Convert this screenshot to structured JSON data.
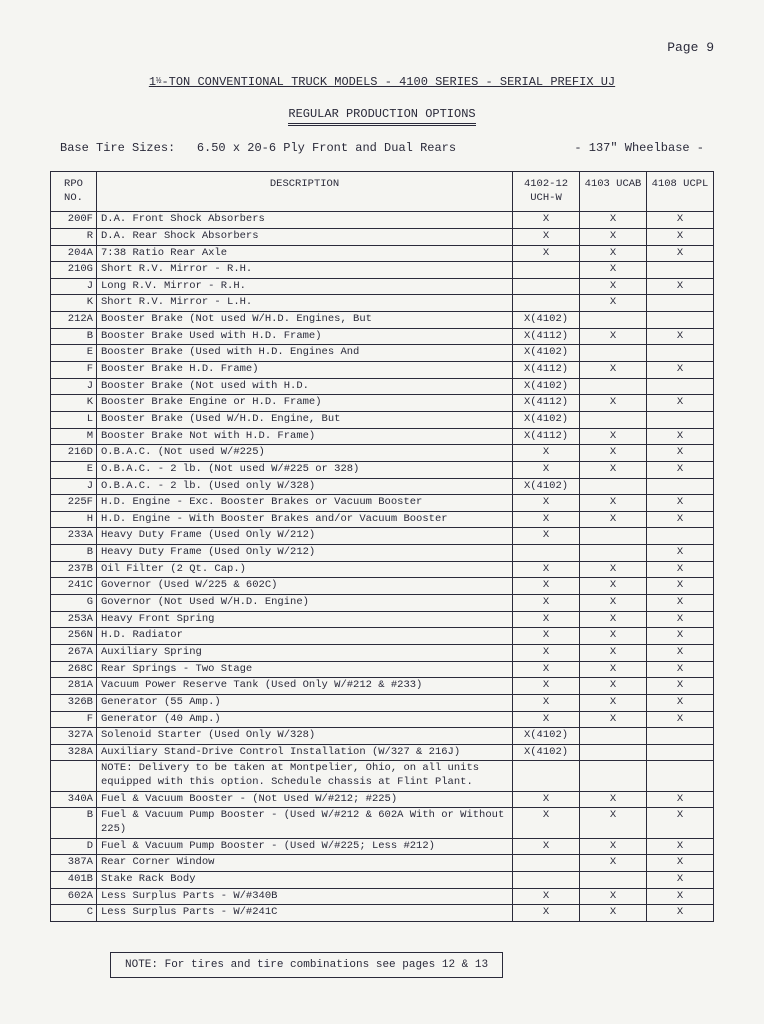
{
  "page_label": "Page 9",
  "title_prefix": "1",
  "title_frac": "½",
  "title_rest": "-TON CONVENTIONAL TRUCK MODELS - 4100 SERIES - SERIAL PREFIX UJ",
  "subtitle": "REGULAR PRODUCTION OPTIONS",
  "tire_label": "Base Tire Sizes:",
  "tire_value": "6.50 x 20-6 Ply Front and Dual Rears",
  "wheelbase": "- 137\" Wheelbase -",
  "headers": {
    "rpo": "RPO NO.",
    "desc": "DESCRIPTION",
    "c1": "4102-12 UCH-W",
    "c2": "4103 UCAB",
    "c3": "4108 UCPL"
  },
  "rows": [
    {
      "rpo": "200F",
      "desc": "D.A. Front Shock Absorbers",
      "c1": "X",
      "c2": "X",
      "c3": "X"
    },
    {
      "rpo": "R",
      "desc": "D.A. Rear Shock Absorbers",
      "c1": "X",
      "c2": "X",
      "c3": "X"
    },
    {
      "rpo": "204A",
      "desc": "7:38 Ratio Rear Axle",
      "c1": "X",
      "c2": "X",
      "c3": "X"
    },
    {
      "rpo": "210G",
      "desc": "Short R.V. Mirror - R.H.",
      "c1": "",
      "c2": "X",
      "c3": ""
    },
    {
      "rpo": "J",
      "desc": "Long R.V. Mirror - R.H.",
      "c1": "",
      "c2": "X",
      "c3": "X"
    },
    {
      "rpo": "K",
      "desc": "Short R.V. Mirror - L.H.",
      "c1": "",
      "c2": "X",
      "c3": ""
    },
    {
      "rpo": "212A",
      "desc": "Booster Brake (Not used W/H.D. Engines, But",
      "c1": "X(4102)",
      "c2": "",
      "c3": ""
    },
    {
      "rpo": "B",
      "desc": "Booster Brake  Used with H.D. Frame)",
      "c1": "X(4112)",
      "c2": "X",
      "c3": "X"
    },
    {
      "rpo": "E",
      "desc": "Booster Brake (Used with H.D. Engines And",
      "c1": "X(4102)",
      "c2": "",
      "c3": ""
    },
    {
      "rpo": "F",
      "desc": "Booster Brake  H.D. Frame)",
      "c1": "X(4112)",
      "c2": "X",
      "c3": "X"
    },
    {
      "rpo": "J",
      "desc": "Booster Brake (Not used with H.D.",
      "c1": "X(4102)",
      "c2": "",
      "c3": ""
    },
    {
      "rpo": "K",
      "desc": "Booster Brake  Engine or H.D. Frame)",
      "c1": "X(4112)",
      "c2": "X",
      "c3": "X"
    },
    {
      "rpo": "L",
      "desc": "Booster Brake (Used W/H.D. Engine, But",
      "c1": "X(4102)",
      "c2": "",
      "c3": ""
    },
    {
      "rpo": "M",
      "desc": "Booster Brake  Not with H.D. Frame)",
      "c1": "X(4112)",
      "c2": "X",
      "c3": "X"
    },
    {
      "rpo": "216D",
      "desc": "O.B.A.C.  (Not used W/#225)",
      "c1": "X",
      "c2": "X",
      "c3": "X"
    },
    {
      "rpo": "E",
      "desc": "O.B.A.C. - 2 lb. (Not used W/#225 or 328)",
      "c1": "X",
      "c2": "X",
      "c3": "X"
    },
    {
      "rpo": "J",
      "desc": "O.B.A.C. - 2 lb. (Used only W/328)",
      "c1": "X(4102)",
      "c2": "",
      "c3": ""
    },
    {
      "rpo": "225F",
      "desc": "H.D. Engine - Exc. Booster Brakes or Vacuum Booster",
      "c1": "X",
      "c2": "X",
      "c3": "X"
    },
    {
      "rpo": "H",
      "desc": "H.D. Engine - With Booster Brakes and/or Vacuum Booster",
      "c1": "X",
      "c2": "X",
      "c3": "X"
    },
    {
      "rpo": "233A",
      "desc": "Heavy Duty Frame  (Used Only W/212)",
      "c1": "X",
      "c2": "",
      "c3": ""
    },
    {
      "rpo": "B",
      "desc": "Heavy Duty Frame  (Used Only W/212)",
      "c1": "",
      "c2": "",
      "c3": "X"
    },
    {
      "rpo": "237B",
      "desc": "Oil Filter (2 Qt. Cap.)",
      "c1": "X",
      "c2": "X",
      "c3": "X"
    },
    {
      "rpo": "241C",
      "desc": "Governor  (Used W/225 & 602C)",
      "c1": "X",
      "c2": "X",
      "c3": "X"
    },
    {
      "rpo": "G",
      "desc": "Governor  (Not Used W/H.D. Engine)",
      "c1": "X",
      "c2": "X",
      "c3": "X"
    },
    {
      "rpo": "253A",
      "desc": "Heavy Front Spring",
      "c1": "X",
      "c2": "X",
      "c3": "X"
    },
    {
      "rpo": "256N",
      "desc": "H.D. Radiator",
      "c1": "X",
      "c2": "X",
      "c3": "X"
    },
    {
      "rpo": "267A",
      "desc": "Auxiliary Spring",
      "c1": "X",
      "c2": "X",
      "c3": "X"
    },
    {
      "rpo": "268C",
      "desc": "Rear Springs - Two Stage",
      "c1": "X",
      "c2": "X",
      "c3": "X"
    },
    {
      "rpo": "281A",
      "desc": "Vacuum Power Reserve Tank (Used Only W/#212 & #233)",
      "c1": "X",
      "c2": "X",
      "c3": "X"
    },
    {
      "rpo": "326B",
      "desc": "Generator (55 Amp.)",
      "c1": "X",
      "c2": "X",
      "c3": "X"
    },
    {
      "rpo": "F",
      "desc": "Generator (40 Amp.)",
      "c1": "X",
      "c2": "X",
      "c3": "X"
    },
    {
      "rpo": "327A",
      "desc": "Solenoid Starter (Used Only W/328)",
      "c1": "X(4102)",
      "c2": "",
      "c3": ""
    },
    {
      "rpo": "328A",
      "desc": "Auxiliary Stand-Drive Control Installation (W/327 & 216J)",
      "c1": "X(4102)",
      "c2": "",
      "c3": ""
    },
    {
      "rpo": "",
      "desc": "NOTE:  Delivery to be taken at Montpelier, Ohio, on all units equipped with this option.  Schedule chassis at Flint Plant.",
      "c1": "",
      "c2": "",
      "c3": ""
    },
    {
      "rpo": "340A",
      "desc": "Fuel & Vacuum Booster -  (Not Used W/#212; #225)",
      "c1": "X",
      "c2": "X",
      "c3": "X"
    },
    {
      "rpo": "B",
      "desc": "Fuel & Vacuum Pump Booster -  (Used W/#212 & 602A  With or Without 225)",
      "c1": "X",
      "c2": "X",
      "c3": "X"
    },
    {
      "rpo": "D",
      "desc": "Fuel & Vacuum Pump Booster -  (Used W/#225; Less #212)",
      "c1": "X",
      "c2": "X",
      "c3": "X"
    },
    {
      "rpo": "387A",
      "desc": "Rear Corner Window",
      "c1": "",
      "c2": "X",
      "c3": "X"
    },
    {
      "rpo": "401B",
      "desc": "Stake Rack Body",
      "c1": "",
      "c2": "",
      "c3": "X"
    },
    {
      "rpo": "602A",
      "desc": "Less Surplus Parts - W/#340B",
      "c1": "X",
      "c2": "X",
      "c3": "X"
    },
    {
      "rpo": "C",
      "desc": "Less Surplus Parts - W/#241C",
      "c1": "X",
      "c2": "X",
      "c3": "X"
    }
  ],
  "footnote": "NOTE:  For tires and tire combinations see pages 12 & 13"
}
